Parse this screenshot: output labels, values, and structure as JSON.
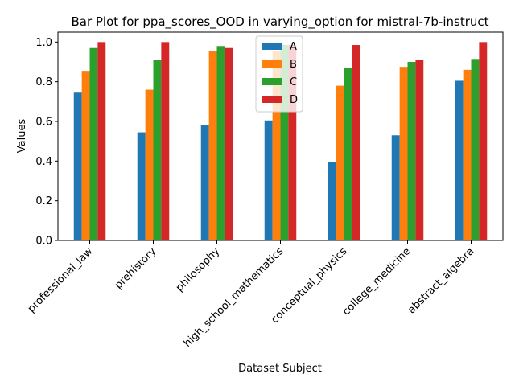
{
  "chart_data": {
    "type": "bar",
    "title": "Bar Plot for ppa_scores_OOD in varying_option for mistral-7b-instruct",
    "xlabel": "Dataset Subject",
    "ylabel": "Values",
    "ylim": [
      0,
      1.05
    ],
    "yticks": [
      "0.0",
      "0.2",
      "0.4",
      "0.6",
      "0.8",
      "1.0"
    ],
    "legend_position": "top-center",
    "grid": false,
    "categories": [
      "professional_law",
      "prehistory",
      "philosophy",
      "high_school_mathematics",
      "conceptual_physics",
      "college_medicine",
      "abstract_algebra"
    ],
    "series": [
      {
        "name": "A",
        "color": "#1f77b4",
        "values": [
          0.745,
          0.545,
          0.58,
          0.605,
          0.395,
          0.53,
          0.805
        ]
      },
      {
        "name": "B",
        "color": "#ff7f0e",
        "values": [
          0.855,
          0.76,
          0.955,
          0.955,
          0.78,
          0.875,
          0.86
        ]
      },
      {
        "name": "C",
        "color": "#2ca02c",
        "values": [
          0.97,
          0.91,
          0.98,
          0.985,
          0.87,
          0.9,
          0.915
        ]
      },
      {
        "name": "D",
        "color": "#d62728",
        "values": [
          1.0,
          1.0,
          0.97,
          0.985,
          0.985,
          0.91,
          1.0
        ]
      }
    ]
  }
}
